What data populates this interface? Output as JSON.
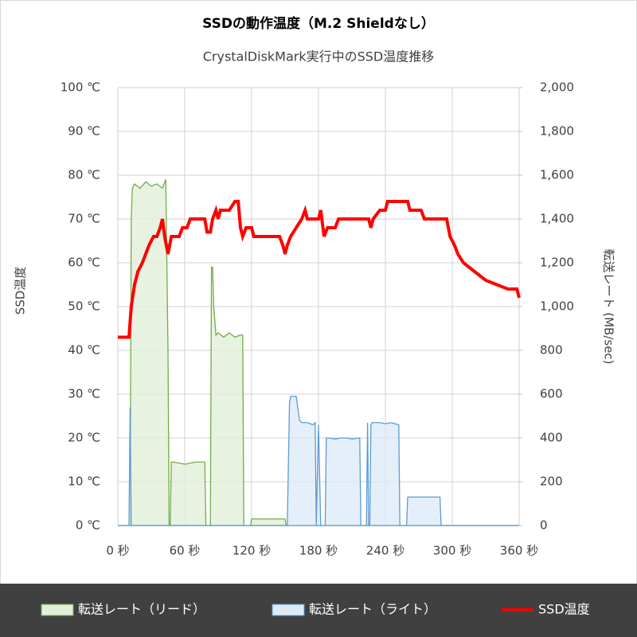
{
  "chart_data": {
    "type": "line",
    "title": "SSDの動作温度（M.2 Shieldなし）",
    "subtitle": "CrystalDiskMark実行中のSSD温度推移",
    "y_label": "SSD温度",
    "y2_label": "転送レート (MB/sec)",
    "xlim": [
      0,
      360
    ],
    "xticks": [
      {
        "value": 0,
        "label": "0 秒"
      },
      {
        "value": 60,
        "label": "60 秒"
      },
      {
        "value": 120,
        "label": "120 秒"
      },
      {
        "value": 180,
        "label": "180 秒"
      },
      {
        "value": 240,
        "label": "240 秒"
      },
      {
        "value": 300,
        "label": "300 秒"
      },
      {
        "value": 360,
        "label": "360 秒"
      }
    ],
    "ylim": [
      0,
      100
    ],
    "yticks": [
      {
        "value": 0,
        "label": "0 ℃"
      },
      {
        "value": 10,
        "label": "10 ℃"
      },
      {
        "value": 20,
        "label": "20 ℃"
      },
      {
        "value": 30,
        "label": "30 ℃"
      },
      {
        "value": 40,
        "label": "40 ℃"
      },
      {
        "value": 50,
        "label": "50 ℃"
      },
      {
        "value": 60,
        "label": "60 ℃"
      },
      {
        "value": 70,
        "label": "70 ℃"
      },
      {
        "value": 80,
        "label": "80 ℃"
      },
      {
        "value": 90,
        "label": "90 ℃"
      },
      {
        "value": 100,
        "label": "100 ℃"
      }
    ],
    "y2lim": [
      0,
      2000
    ],
    "y2ticks": [
      0,
      200,
      400,
      600,
      800,
      {
        "value": 1000,
        "label": "1,000"
      },
      {
        "value": 1200,
        "label": "1,200"
      },
      {
        "value": 1400,
        "label": "1,400"
      },
      {
        "value": 1600,
        "label": "1,600"
      },
      {
        "value": 1800,
        "label": "1,800"
      },
      {
        "value": 2000,
        "label": "2,000"
      }
    ],
    "grid": true,
    "legend": "bottom",
    "series": [
      {
        "name": "転送レート（リード）",
        "kind": "area",
        "axis": "y2",
        "color": "#70ad47",
        "fill": "#e2efda",
        "x": [
          0,
          11,
          12,
          13,
          15,
          20,
          25,
          30,
          35,
          40,
          43,
          45,
          46,
          47,
          48,
          50,
          60,
          70,
          78,
          79,
          80,
          82,
          83,
          84,
          85,
          86,
          88,
          90,
          95,
          100,
          105,
          110,
          112,
          113,
          119,
          120,
          130,
          140,
          150,
          151,
          152,
          360
        ],
        "values": [
          0,
          0,
          1400,
          1540,
          1560,
          1540,
          1570,
          1550,
          1560,
          1540,
          1580,
          800,
          0,
          0,
          290,
          290,
          280,
          290,
          290,
          0,
          0,
          0,
          0,
          1180,
          1180,
          1000,
          870,
          880,
          860,
          880,
          860,
          870,
          870,
          0,
          0,
          30,
          30,
          30,
          30,
          0,
          0,
          0
        ]
      },
      {
        "name": "転送レート（ライト）",
        "kind": "area",
        "axis": "y2",
        "color": "#5b9bd5",
        "fill": "#deebf7",
        "x": [
          0,
          10,
          11,
          12,
          13,
          152,
          154,
          155,
          160,
          163,
          165,
          170,
          175,
          177,
          178,
          180,
          182,
          183,
          186,
          187,
          188,
          195,
          200,
          205,
          210,
          217,
          218,
          223,
          224,
          225,
          226,
          227,
          228,
          235,
          240,
          245,
          252,
          253,
          259,
          260,
          270,
          280,
          289,
          290,
          360
        ],
        "values": [
          0,
          0,
          540,
          0,
          0,
          0,
          560,
          590,
          590,
          480,
          470,
          470,
          460,
          470,
          0,
          460,
          0,
          0,
          0,
          400,
          400,
          395,
          400,
          400,
          395,
          400,
          0,
          0,
          470,
          0,
          0,
          460,
          470,
          470,
          465,
          470,
          460,
          0,
          0,
          130,
          130,
          130,
          130,
          0,
          0
        ]
      },
      {
        "name": "SSD温度",
        "kind": "line",
        "axis": "y",
        "color": "#ff0000",
        "x": [
          0,
          10,
          12,
          15,
          18,
          22,
          25,
          28,
          32,
          35,
          38,
          40,
          42,
          45,
          48,
          55,
          58,
          62,
          65,
          78,
          80,
          83,
          85,
          88,
          90,
          92,
          100,
          105,
          108,
          110,
          112,
          115,
          120,
          122,
          145,
          148,
          150,
          152,
          155,
          160,
          165,
          168,
          170,
          180,
          182,
          185,
          188,
          195,
          198,
          225,
          227,
          229,
          235,
          240,
          242,
          260,
          262,
          272,
          275,
          295,
          298,
          302,
          305,
          310,
          315,
          320,
          325,
          330,
          340,
          350,
          358,
          360
        ],
        "values": [
          43,
          43,
          50,
          55,
          58,
          60,
          62,
          64,
          66,
          66,
          68,
          70,
          66,
          62,
          66,
          66,
          68,
          68,
          70,
          70,
          67,
          67,
          70,
          72,
          70,
          72,
          72,
          74,
          74,
          68,
          66,
          68,
          68,
          66,
          66,
          64,
          62,
          64,
          66,
          68,
          70,
          72,
          70,
          70,
          72,
          66,
          68,
          68,
          70,
          70,
          68,
          70,
          72,
          72,
          74,
          74,
          72,
          72,
          70,
          70,
          66,
          64,
          62,
          60,
          59,
          58,
          57,
          56,
          55,
          54,
          54,
          52
        ]
      }
    ]
  }
}
